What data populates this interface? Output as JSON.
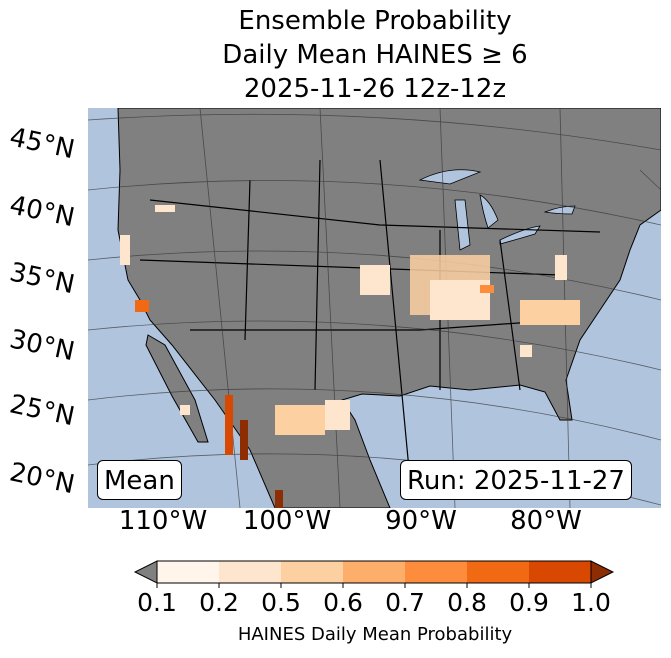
{
  "title": {
    "line1": "Ensemble Probability",
    "line2": "Daily Mean HAINES ≥ 6",
    "line3": "2025-11-26 12z-12z"
  },
  "map": {
    "ocean_color": "#b0c4de",
    "land_color": "#808080",
    "lat_labels": [
      "45°N",
      "40°N",
      "35°N",
      "30°N",
      "25°N",
      "20°N"
    ],
    "lon_labels": [
      "110°W",
      "100°W",
      "90°W",
      "80°W"
    ],
    "mean_label": "Mean",
    "run_label": "Run: 2025-11-27"
  },
  "colorbar": {
    "label": "HAINES Daily Mean Probability",
    "ticks": [
      "0.1",
      "0.2",
      "0.5",
      "0.6",
      "0.7",
      "0.8",
      "0.9",
      "1.0"
    ],
    "colors": [
      "#fff5eb",
      "#fee6ce",
      "#fdd0a2",
      "#fdae6b",
      "#fd8d3c",
      "#f16913",
      "#d94801"
    ],
    "under_color": "#808080",
    "over_color": "#8c2d04"
  }
}
